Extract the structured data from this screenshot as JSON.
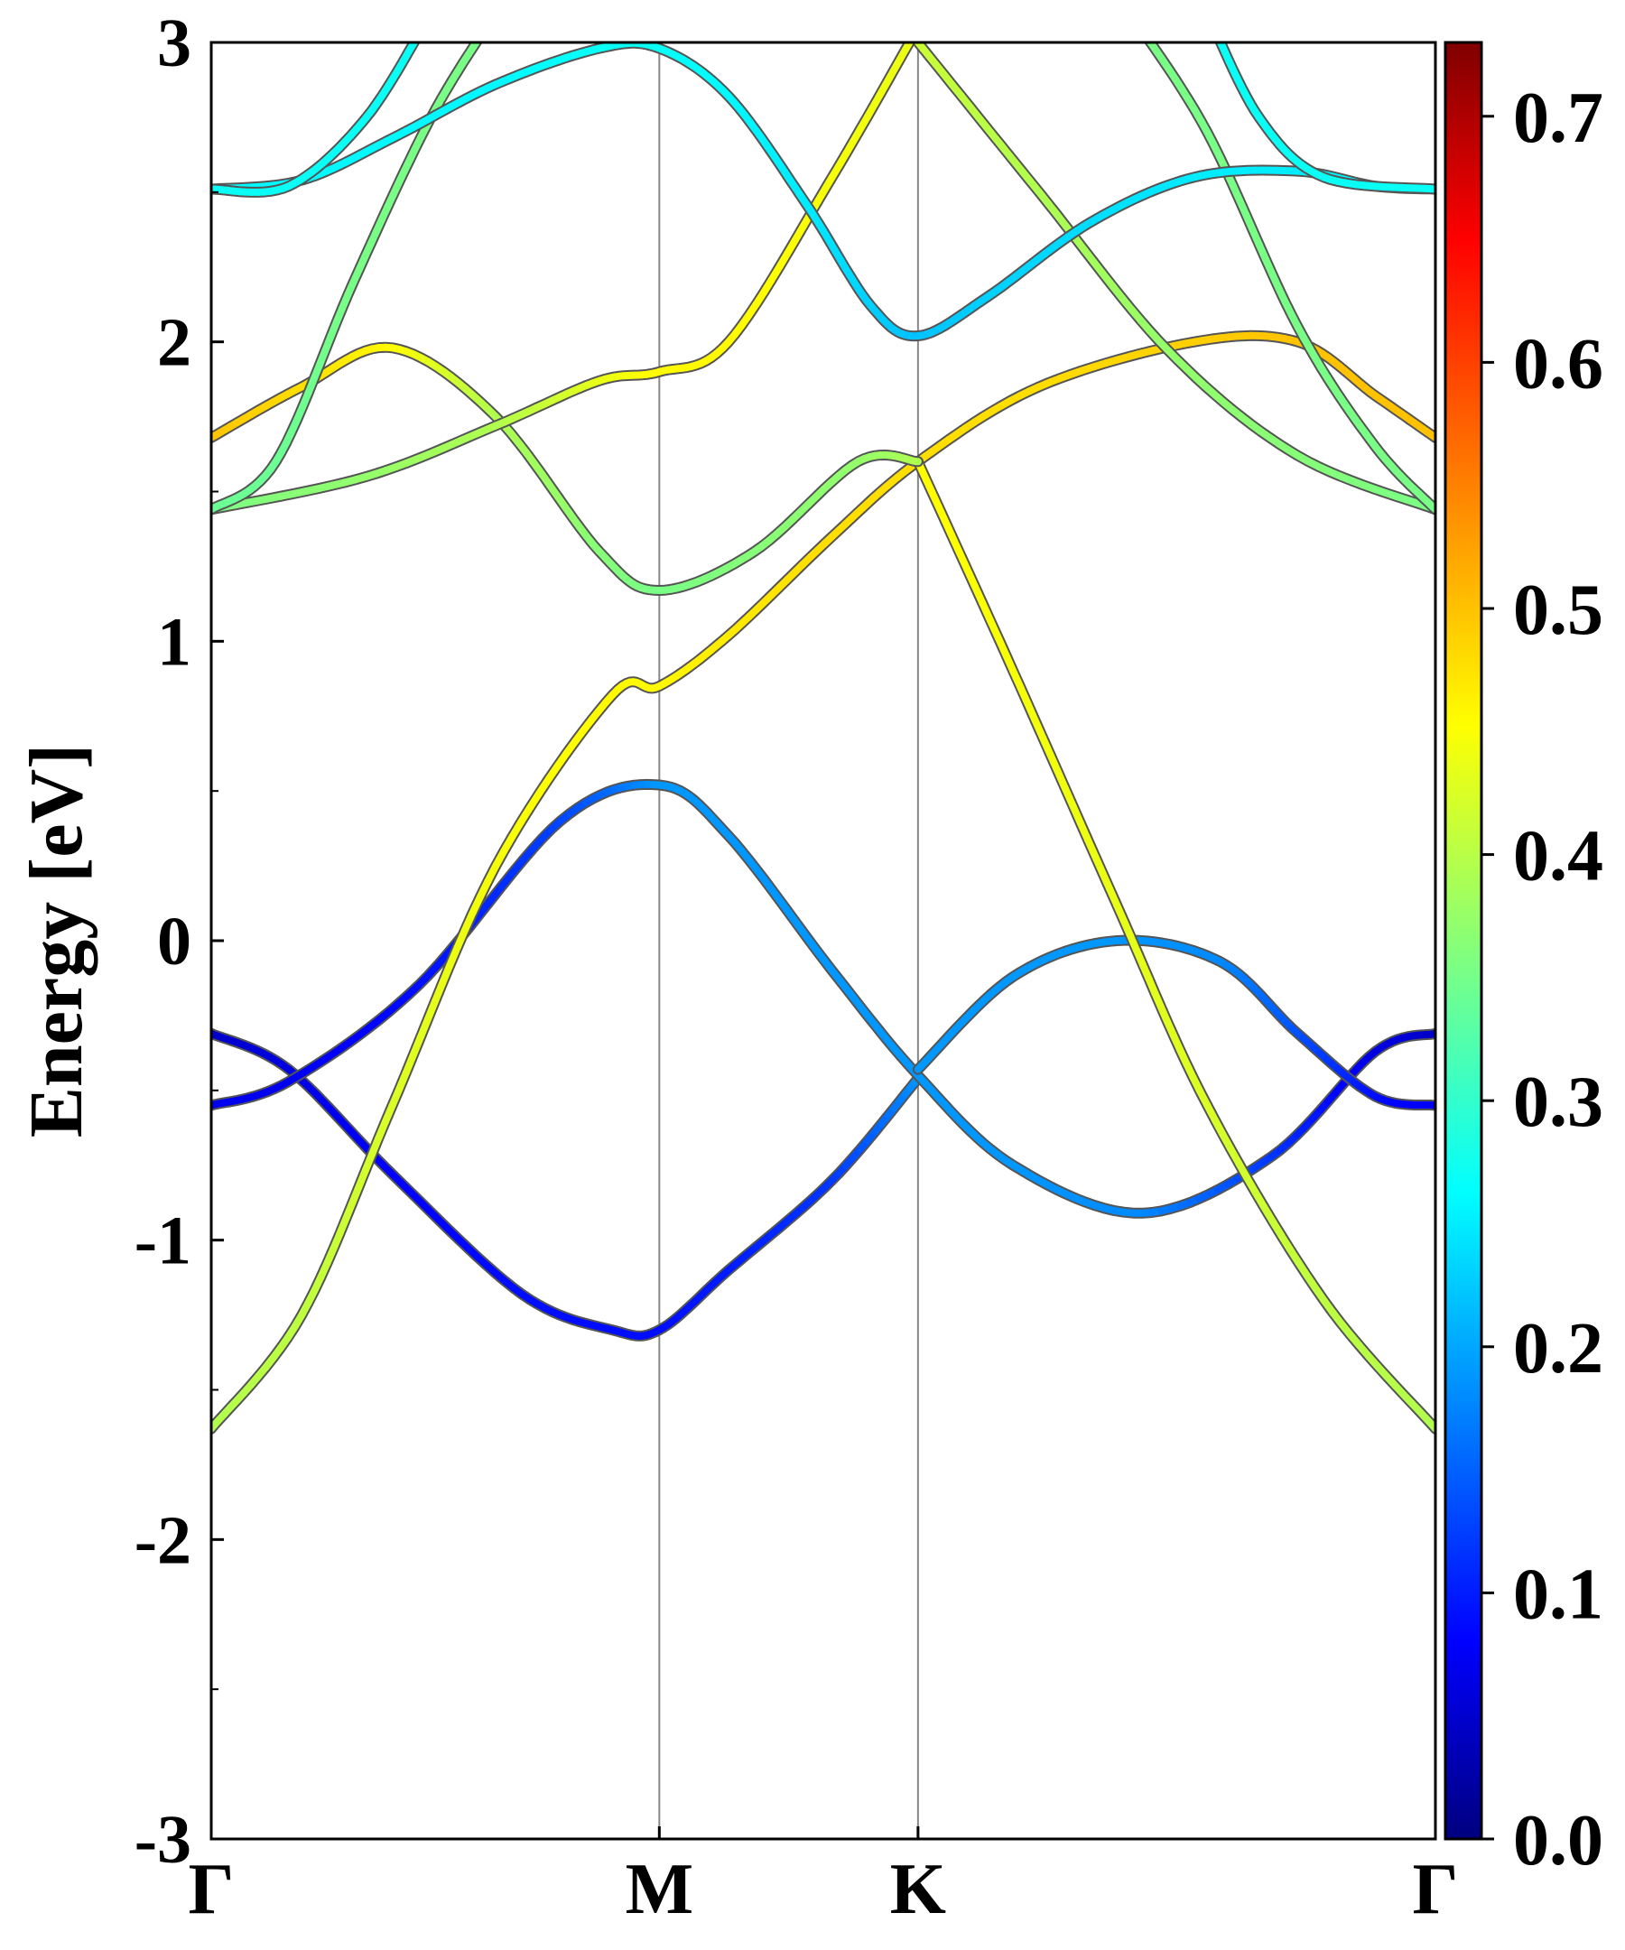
{
  "chart_data": {
    "type": "line",
    "ylabel": "Energy [eV]",
    "ylim": [
      -3,
      3
    ],
    "y_ticks": [
      "3",
      "2",
      "1",
      "0",
      "-1",
      "-2",
      "-3"
    ],
    "kpath": {
      "labels": [
        "Γ",
        "M",
        "K",
        "Γ"
      ],
      "positions": [
        0,
        1.732,
        2.732,
        4.732
      ]
    },
    "colorbar": {
      "colormap": "jet",
      "range": [
        0,
        0.73
      ],
      "ticks": [
        "0.0",
        "0.1",
        "0.2",
        "0.3",
        "0.4",
        "0.5",
        "0.6",
        "0.7"
      ]
    },
    "series": [
      {
        "points": [
          [
            0,
            -0.31
          ],
          [
            0.3,
            -0.43
          ],
          [
            0.7,
            -0.78
          ],
          [
            1.2,
            -1.18
          ],
          [
            1.55,
            -1.3
          ],
          [
            1.732,
            -1.3
          ],
          [
            2.0,
            -1.1
          ],
          [
            2.4,
            -0.8
          ],
          [
            2.732,
            -0.46
          ]
        ],
        "weights": [
          0.05,
          0.07,
          0.09,
          0.1,
          0.1,
          0.1,
          0.11,
          0.13,
          0.2
        ]
      },
      {
        "points": [
          [
            0,
            -0.55
          ],
          [
            0.3,
            -0.47
          ],
          [
            0.8,
            -0.15
          ],
          [
            1.35,
            0.4
          ],
          [
            1.732,
            0.52
          ],
          [
            2.0,
            0.35
          ],
          [
            2.4,
            -0.1
          ],
          [
            2.732,
            -0.45
          ],
          [
            3.1,
            -0.75
          ],
          [
            3.6,
            -0.91
          ],
          [
            4.1,
            -0.72
          ],
          [
            4.5,
            -0.37
          ],
          [
            4.732,
            -0.31
          ]
        ],
        "weights": [
          0.08,
          0.08,
          0.1,
          0.14,
          0.2,
          0.2,
          0.2,
          0.2,
          0.2,
          0.19,
          0.13,
          0.07,
          0.05
        ]
      },
      {
        "points": [
          [
            2.732,
            -0.43
          ],
          [
            3.1,
            -0.12
          ],
          [
            3.5,
            0.0
          ],
          [
            3.9,
            -0.07
          ],
          [
            4.2,
            -0.31
          ],
          [
            4.5,
            -0.52
          ],
          [
            4.732,
            -0.55
          ]
        ],
        "weights": [
          0.2,
          0.2,
          0.2,
          0.19,
          0.15,
          0.1,
          0.08
        ]
      },
      {
        "points": [
          [
            0,
            -1.63
          ],
          [
            0.35,
            -1.25
          ],
          [
            0.7,
            -0.55
          ],
          [
            1.1,
            0.25
          ],
          [
            1.55,
            0.82
          ],
          [
            1.732,
            0.85
          ],
          [
            2.0,
            1.02
          ],
          [
            2.4,
            1.35
          ],
          [
            2.732,
            1.6
          ],
          [
            3.2,
            1.85
          ],
          [
            3.8,
            2.0
          ],
          [
            4.2,
            2.0
          ],
          [
            4.5,
            1.82
          ],
          [
            4.732,
            1.68
          ]
        ],
        "weights": [
          0.4,
          0.41,
          0.43,
          0.45,
          0.46,
          0.46,
          0.47,
          0.48,
          0.48,
          0.48,
          0.49,
          0.5,
          0.5,
          0.5
        ]
      },
      {
        "points": [
          [
            2.732,
            1.6
          ],
          [
            3.1,
            0.9
          ],
          [
            3.5,
            0.12
          ],
          [
            3.85,
            -0.55
          ],
          [
            4.3,
            -1.2
          ],
          [
            4.732,
            -1.63
          ]
        ],
        "weights": [
          0.46,
          0.45,
          0.44,
          0.43,
          0.41,
          0.4
        ]
      },
      {
        "points": [
          [
            0,
            1.68
          ],
          [
            0.35,
            1.85
          ],
          [
            0.7,
            1.98
          ],
          [
            1.1,
            1.75
          ],
          [
            1.5,
            1.3
          ],
          [
            1.732,
            1.17
          ],
          [
            2.1,
            1.3
          ],
          [
            2.5,
            1.6
          ],
          [
            2.732,
            1.6
          ]
        ],
        "weights": [
          0.5,
          0.48,
          0.46,
          0.4,
          0.37,
          0.36,
          0.37,
          0.38,
          0.4
        ]
      },
      {
        "points": [
          [
            0,
            1.44
          ],
          [
            0.6,
            1.55
          ],
          [
            1.1,
            1.72
          ],
          [
            1.5,
            1.87
          ],
          [
            1.732,
            1.9
          ],
          [
            2.0,
            2.0
          ],
          [
            2.4,
            2.55
          ],
          [
            2.732,
            3.05
          ]
        ],
        "weights": [
          0.36,
          0.38,
          0.4,
          0.44,
          0.46,
          0.46,
          0.45,
          0.44
        ]
      },
      {
        "points": [
          [
            0,
            1.44
          ],
          [
            0.25,
            1.6
          ],
          [
            0.55,
            2.2
          ],
          [
            0.85,
            2.75
          ],
          [
            1.1,
            3.1
          ]
        ],
        "weights": [
          0.35,
          0.35,
          0.36,
          0.36,
          0.36
        ]
      },
      {
        "points": [
          [
            2.732,
            3.0
          ],
          [
            3.2,
            2.5
          ],
          [
            3.7,
            1.97
          ],
          [
            4.2,
            1.62
          ],
          [
            4.732,
            1.44
          ]
        ],
        "weights": [
          0.42,
          0.4,
          0.38,
          0.37,
          0.36
        ]
      },
      {
        "points": [
          [
            3.55,
            3.1
          ],
          [
            3.85,
            2.7
          ],
          [
            4.2,
            2.05
          ],
          [
            4.5,
            1.65
          ],
          [
            4.732,
            1.44
          ]
        ],
        "weights": [
          0.36,
          0.36,
          0.36,
          0.36,
          0.36
        ]
      },
      {
        "points": [
          [
            0,
            2.51
          ],
          [
            0.35,
            2.54
          ],
          [
            0.7,
            2.68
          ],
          [
            1.1,
            2.86
          ],
          [
            1.5,
            2.98
          ],
          [
            1.732,
            2.98
          ],
          [
            2.0,
            2.82
          ],
          [
            2.3,
            2.46
          ],
          [
            2.55,
            2.12
          ],
          [
            2.732,
            2.02
          ],
          [
            3.0,
            2.15
          ],
          [
            3.4,
            2.4
          ],
          [
            3.8,
            2.55
          ],
          [
            4.2,
            2.57
          ],
          [
            4.5,
            2.52
          ],
          [
            4.732,
            2.51
          ]
        ],
        "weights": [
          0.27,
          0.27,
          0.27,
          0.27,
          0.28,
          0.28,
          0.27,
          0.26,
          0.24,
          0.23,
          0.24,
          0.25,
          0.26,
          0.26,
          0.27,
          0.27
        ]
      },
      {
        "points": [
          [
            0,
            2.51
          ],
          [
            0.3,
            2.52
          ],
          [
            0.6,
            2.75
          ],
          [
            0.85,
            3.1
          ]
        ],
        "weights": [
          0.28,
          0.28,
          0.28,
          0.28
        ]
      },
      {
        "points": [
          [
            3.85,
            3.1
          ],
          [
            4.05,
            2.75
          ],
          [
            4.3,
            2.55
          ],
          [
            4.732,
            2.51
          ]
        ],
        "weights": [
          0.28,
          0.28,
          0.28,
          0.28
        ]
      }
    ]
  }
}
